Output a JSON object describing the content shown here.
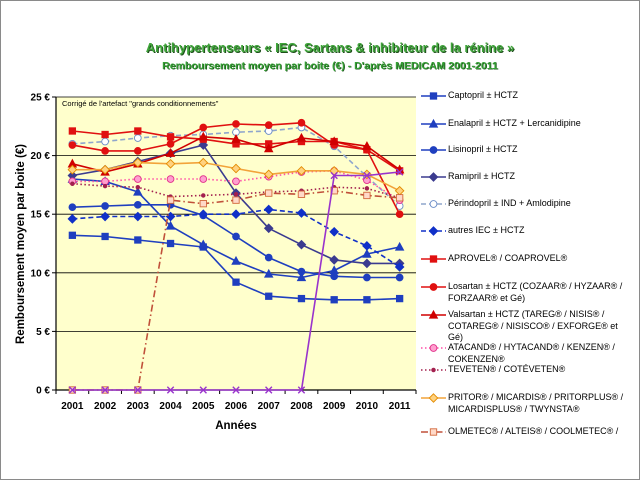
{
  "chart_data": {
    "type": "line",
    "title": "Antihypertenseurs « IEC, Sartans & inhibiteur de la rénine »",
    "subtitle": "Remboursement moyen par boite (€) - D'après MEDICAM 2001-2011",
    "annotation": "Corrigé de l'artefact \"grands conditionnements\"",
    "xlabel": "Années",
    "ylabel": "Remboursement moyen par boite (€)",
    "categories": [
      "2001",
      "2002",
      "2003",
      "2004",
      "2005",
      "2006",
      "2007",
      "2008",
      "2009",
      "2010",
      "2011"
    ],
    "ylim": [
      0,
      25
    ],
    "yticks": {
      "values": [
        0,
        5,
        10,
        15,
        20,
        25
      ],
      "labels": [
        "0 €",
        "5 €",
        "10 €",
        "15 €",
        "20 €",
        "25 €"
      ]
    },
    "grid": "horizontal",
    "legend": "right",
    "plot_background": "#ffffcc",
    "series": [
      {
        "name": "Captopril ± HCTZ",
        "color": "#1f3fbf",
        "marker": "square",
        "line": "solid",
        "values": [
          13.2,
          13.1,
          12.8,
          12.5,
          12.2,
          9.2,
          8.0,
          7.8,
          7.7,
          7.7,
          7.8
        ]
      },
      {
        "name": "Enalapril ± HCTZ + Lercanidipine",
        "color": "#1f3fbf",
        "marker": "triangle",
        "line": "solid",
        "values": [
          18.0,
          17.8,
          16.9,
          14.0,
          12.4,
          11.0,
          9.9,
          9.6,
          10.2,
          11.6,
          12.2
        ]
      },
      {
        "name": "Lisinopril ± HCTZ",
        "color": "#1f3fbf",
        "marker": "circle",
        "line": "solid",
        "values": [
          15.6,
          15.7,
          15.8,
          15.8,
          14.9,
          13.1,
          11.3,
          10.1,
          9.7,
          9.6,
          9.6
        ]
      },
      {
        "name": "Ramipril ± HCTZ",
        "color": "#3b3b8f",
        "marker": "diamond",
        "line": "solid",
        "values": [
          18.3,
          18.8,
          19.5,
          20.2,
          20.9,
          16.8,
          13.8,
          12.4,
          11.1,
          10.8,
          10.8
        ]
      },
      {
        "name": "Périndopril ± IND + Amlodipine",
        "color": "#8fa6cc",
        "marker": "circle",
        "marker_fill": "#ffffff",
        "marker_stroke": "#6a8cc7",
        "line": "dashed",
        "values": [
          21.0,
          21.2,
          21.5,
          21.7,
          21.8,
          22.0,
          22.1,
          22.4,
          20.8,
          18.2,
          15.7
        ]
      },
      {
        "name": "autres IEC ± HCTZ",
        "color": "#1030c8",
        "marker": "diamond",
        "line": "dashed",
        "values": [
          14.6,
          14.8,
          14.8,
          14.8,
          15.0,
          15.0,
          15.4,
          15.1,
          13.5,
          12.3,
          10.5
        ]
      },
      {
        "name": "APROVEL® / COAPROVEL®",
        "color": "#e01010",
        "marker": "square",
        "line": "solid",
        "values": [
          22.1,
          21.8,
          22.1,
          21.6,
          21.4,
          21.0,
          21.0,
          21.2,
          21.2,
          20.5,
          18.7
        ]
      },
      {
        "name": "Losartan ± HCTZ (COZAAR® / HYZAAR® / FORZAAR® et Gé)",
        "color": "#e01010",
        "marker": "circle",
        "line": "solid",
        "values": [
          20.9,
          20.4,
          20.4,
          21.0,
          22.4,
          22.7,
          22.6,
          22.8,
          20.9,
          20.5,
          15.0
        ]
      },
      {
        "name": "Valsartan ± HCTZ (TAREG® / NISIS® / COTAREG® / NISISCO® / EXFORGE® et Gé)",
        "color": "#d00000",
        "marker": "triangle",
        "line": "solid",
        "values": [
          19.3,
          18.6,
          19.3,
          20.2,
          21.6,
          21.4,
          20.6,
          21.5,
          21.2,
          20.8,
          18.8
        ]
      },
      {
        "name": "ATACAND® / HYTACAND® / KENZEN® / COKENZEN®",
        "color": "#ff4fa8",
        "marker": "circle",
        "marker_fill": "#ff9fcf",
        "marker_stroke": "#e0308a",
        "line": "dotted",
        "values": [
          17.8,
          17.8,
          18.0,
          18.0,
          18.0,
          17.8,
          18.2,
          18.6,
          18.7,
          17.9,
          16.2
        ]
      },
      {
        "name": "TEVETEN® / COTÉVETEN®",
        "color": "#a3204f",
        "marker": "dot",
        "line": "dotted",
        "values": [
          17.6,
          17.4,
          17.3,
          16.5,
          16.6,
          16.7,
          16.9,
          17.0,
          17.3,
          17.2,
          16.4
        ]
      },
      {
        "name": "PRITOR® / MICARDIS® / PRITORPLUS® / MICARDISPLUS® / TWYNSTA®",
        "color": "#f2a33a",
        "marker": "diamond",
        "marker_fill": "#ffd27f",
        "marker_stroke": "#e38b00",
        "line": "solid",
        "values": [
          18.8,
          18.8,
          19.4,
          19.3,
          19.4,
          18.9,
          18.4,
          18.7,
          18.7,
          18.4,
          17.0
        ]
      },
      {
        "name": "OLMETEC® / ALTEIS® / COOLMETEC® /",
        "color": "#c0503a",
        "marker": "square",
        "marker_fill": "#ffd9c8",
        "marker_stroke": "#d2693c",
        "line": "dashdot",
        "values": [
          0,
          0,
          0,
          16.2,
          15.9,
          16.2,
          16.8,
          16.7,
          17.0,
          16.6,
          16.4
        ]
      },
      {
        "color": "#9933cc",
        "marker": "x",
        "line": "solid",
        "values": [
          0,
          0,
          0,
          0,
          0,
          0,
          0,
          0,
          18.3,
          18.3,
          18.6
        ]
      }
    ]
  }
}
